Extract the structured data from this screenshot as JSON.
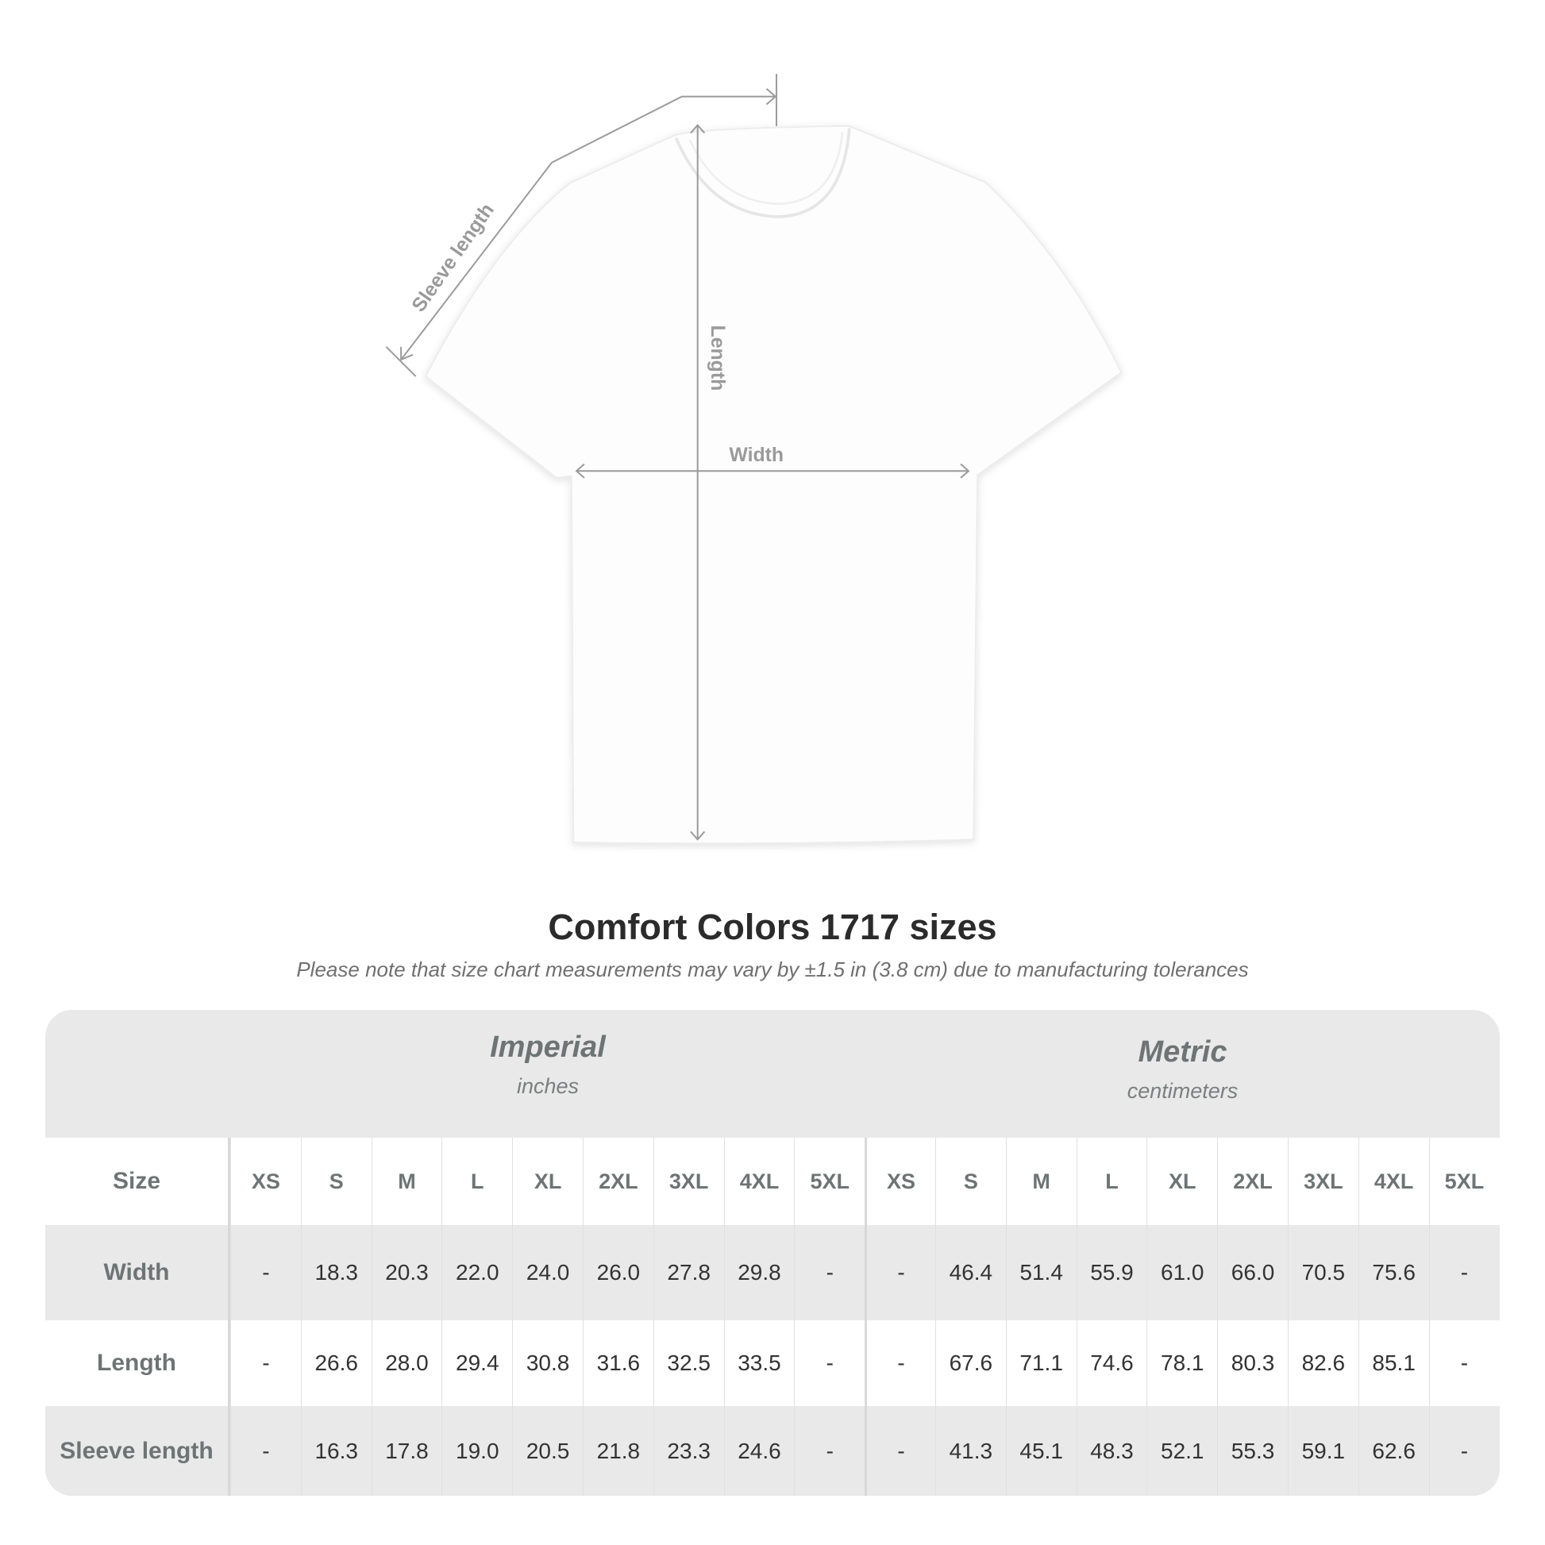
{
  "diagram": {
    "labels": {
      "sleeve": "Sleeve length",
      "length": "Length",
      "width": "Width"
    },
    "line_color": "#9a9a9a"
  },
  "title": "Comfort Colors 1717 sizes",
  "subtitle": "Please note that size chart measurements may vary by ±1.5 in (3.8 cm) due to manufacturing tolerances",
  "table": {
    "imperial": {
      "name": "Imperial",
      "unit": "inches"
    },
    "metric": {
      "name": "Metric",
      "unit": "centimeters"
    },
    "size_label": "Size",
    "sizes": [
      "XS",
      "S",
      "M",
      "L",
      "XL",
      "2XL",
      "3XL",
      "4XL",
      "5XL"
    ],
    "rows": [
      {
        "label": "Width",
        "imperial": [
          "-",
          "18.3",
          "20.3",
          "22.0",
          "24.0",
          "26.0",
          "27.8",
          "29.8",
          "-"
        ],
        "metric": [
          "-",
          "46.4",
          "51.4",
          "55.9",
          "61.0",
          "66.0",
          "70.5",
          "75.6",
          "-"
        ]
      },
      {
        "label": "Length",
        "imperial": [
          "-",
          "26.6",
          "28.0",
          "29.4",
          "30.8",
          "31.6",
          "32.5",
          "33.5",
          "-"
        ],
        "metric": [
          "-",
          "67.6",
          "71.1",
          "74.6",
          "78.1",
          "80.3",
          "82.6",
          "85.1",
          "-"
        ]
      },
      {
        "label": "Sleeve length",
        "imperial": [
          "-",
          "16.3",
          "17.8",
          "19.0",
          "20.5",
          "21.8",
          "23.3",
          "24.6",
          "-"
        ],
        "metric": [
          "-",
          "41.3",
          "45.1",
          "48.3",
          "52.1",
          "55.3",
          "59.1",
          "62.6",
          "-"
        ]
      }
    ],
    "colors": {
      "band": "#e9e9e9",
      "label": "#6e7474"
    }
  }
}
